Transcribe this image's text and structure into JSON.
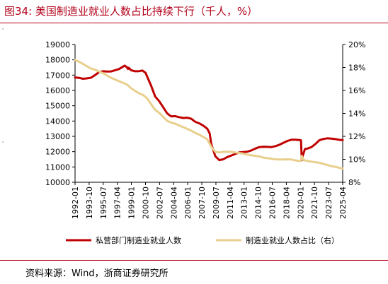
{
  "figure": {
    "title": "图34:   美国制造业就业人数占比持续下行（千人，%）",
    "source": "资料来源：Wind，浙商证券研究所"
  },
  "colors": {
    "title": "#b3001b",
    "series_employment": "#c00000",
    "series_share": "#e8cf8d",
    "axis": "#000000"
  },
  "chart_data": {
    "type": "line",
    "x_tick_labels": [
      "1992-01",
      "1993-10",
      "1995-07",
      "1997-04",
      "1999-01",
      "2000-10",
      "2002-07",
      "2004-04",
      "2006-01",
      "2007-10",
      "2009-07",
      "2011-04",
      "2013-01",
      "2014-10",
      "2016-07",
      "2018-04",
      "2020-01",
      "2021-10",
      "2023-07",
      "2025-04"
    ],
    "x_range": [
      1992.0,
      2025.4
    ],
    "y_left": {
      "ticks": [
        10000,
        11000,
        12000,
        13000,
        14000,
        15000,
        16000,
        17000,
        18000,
        19000
      ],
      "range": [
        10000,
        19000
      ]
    },
    "y_right": {
      "ticks": [
        "8%",
        "10%",
        "12%",
        "14%",
        "16%",
        "18%",
        "20%"
      ],
      "range": [
        8,
        20
      ]
    },
    "grid": false,
    "legend_position": "bottom",
    "series": [
      {
        "name": "私营部门制造业就业人数",
        "axis": "left",
        "points": [
          [
            1992.0,
            16850
          ],
          [
            1992.5,
            16820
          ],
          [
            1993.0,
            16760
          ],
          [
            1993.5,
            16790
          ],
          [
            1994.0,
            16830
          ],
          [
            1994.5,
            17000
          ],
          [
            1995.0,
            17200
          ],
          [
            1995.5,
            17250
          ],
          [
            1996.0,
            17230
          ],
          [
            1996.5,
            17240
          ],
          [
            1997.0,
            17320
          ],
          [
            1997.5,
            17400
          ],
          [
            1998.0,
            17560
          ],
          [
            1998.2,
            17620
          ],
          [
            1998.5,
            17500
          ],
          [
            1998.6,
            17400
          ],
          [
            1998.7,
            17480
          ],
          [
            1999.0,
            17320
          ],
          [
            1999.5,
            17250
          ],
          [
            2000.0,
            17260
          ],
          [
            2000.4,
            17300
          ],
          [
            2000.8,
            17150
          ],
          [
            2001.0,
            16900
          ],
          [
            2001.5,
            16300
          ],
          [
            2002.0,
            15600
          ],
          [
            2002.5,
            15300
          ],
          [
            2003.0,
            14900
          ],
          [
            2003.5,
            14500
          ],
          [
            2004.0,
            14300
          ],
          [
            2004.5,
            14320
          ],
          [
            2005.0,
            14250
          ],
          [
            2005.5,
            14200
          ],
          [
            2006.0,
            14220
          ],
          [
            2006.5,
            14150
          ],
          [
            2007.0,
            13950
          ],
          [
            2007.5,
            13850
          ],
          [
            2008.0,
            13700
          ],
          [
            2008.5,
            13500
          ],
          [
            2008.8,
            13200
          ],
          [
            2009.0,
            12500
          ],
          [
            2009.5,
            11700
          ],
          [
            2010.0,
            11450
          ],
          [
            2010.5,
            11500
          ],
          [
            2011.0,
            11650
          ],
          [
            2011.5,
            11750
          ],
          [
            2012.0,
            11850
          ],
          [
            2012.5,
            11950
          ],
          [
            2013.0,
            11970
          ],
          [
            2013.5,
            12000
          ],
          [
            2014.0,
            12080
          ],
          [
            2014.5,
            12200
          ],
          [
            2015.0,
            12300
          ],
          [
            2015.5,
            12320
          ],
          [
            2016.0,
            12310
          ],
          [
            2016.5,
            12300
          ],
          [
            2017.0,
            12360
          ],
          [
            2017.5,
            12450
          ],
          [
            2018.0,
            12580
          ],
          [
            2018.5,
            12700
          ],
          [
            2019.0,
            12780
          ],
          [
            2019.5,
            12780
          ],
          [
            2020.0,
            12760
          ],
          [
            2020.2,
            12740
          ],
          [
            2020.3,
            11430
          ],
          [
            2020.4,
            11700
          ],
          [
            2020.7,
            12180
          ],
          [
            2021.0,
            12200
          ],
          [
            2021.5,
            12300
          ],
          [
            2022.0,
            12500
          ],
          [
            2022.5,
            12750
          ],
          [
            2023.0,
            12830
          ],
          [
            2023.5,
            12870
          ],
          [
            2024.0,
            12850
          ],
          [
            2024.5,
            12820
          ],
          [
            2025.0,
            12770
          ],
          [
            2025.4,
            12760
          ]
        ]
      },
      {
        "name": "制造业就业人数占比（右）",
        "axis": "right",
        "points": [
          [
            1992.0,
            18.65
          ],
          [
            1992.5,
            18.5
          ],
          [
            1993.0,
            18.3
          ],
          [
            1993.5,
            18.1
          ],
          [
            1994.0,
            17.9
          ],
          [
            1994.5,
            17.8
          ],
          [
            1995.0,
            17.65
          ],
          [
            1995.5,
            17.5
          ],
          [
            1996.0,
            17.3
          ],
          [
            1996.5,
            17.1
          ],
          [
            1997.0,
            16.95
          ],
          [
            1997.5,
            16.8
          ],
          [
            1998.0,
            16.65
          ],
          [
            1998.5,
            16.5
          ],
          [
            1999.0,
            16.2
          ],
          [
            1999.5,
            15.95
          ],
          [
            2000.0,
            15.75
          ],
          [
            2000.5,
            15.6
          ],
          [
            2001.0,
            15.3
          ],
          [
            2001.5,
            14.8
          ],
          [
            2002.0,
            14.3
          ],
          [
            2002.5,
            14.05
          ],
          [
            2003.0,
            13.7
          ],
          [
            2003.5,
            13.35
          ],
          [
            2004.0,
            13.2
          ],
          [
            2004.5,
            13.1
          ],
          [
            2005.0,
            12.95
          ],
          [
            2005.5,
            12.8
          ],
          [
            2006.0,
            12.65
          ],
          [
            2006.5,
            12.5
          ],
          [
            2007.0,
            12.3
          ],
          [
            2007.5,
            12.15
          ],
          [
            2008.0,
            11.95
          ],
          [
            2008.5,
            11.75
          ],
          [
            2009.0,
            11.1
          ],
          [
            2009.5,
            10.65
          ],
          [
            2010.0,
            10.6
          ],
          [
            2010.5,
            10.65
          ],
          [
            2011.0,
            10.65
          ],
          [
            2011.5,
            10.65
          ],
          [
            2012.0,
            10.6
          ],
          [
            2012.5,
            10.55
          ],
          [
            2013.0,
            10.5
          ],
          [
            2013.5,
            10.4
          ],
          [
            2014.0,
            10.35
          ],
          [
            2014.5,
            10.3
          ],
          [
            2015.0,
            10.25
          ],
          [
            2015.5,
            10.15
          ],
          [
            2016.0,
            10.1
          ],
          [
            2016.5,
            10.05
          ],
          [
            2017.0,
            10.0
          ],
          [
            2017.5,
            9.98
          ],
          [
            2018.0,
            9.98
          ],
          [
            2018.5,
            10.0
          ],
          [
            2019.0,
            9.98
          ],
          [
            2019.5,
            9.9
          ],
          [
            2020.0,
            9.85
          ],
          [
            2020.2,
            9.9
          ],
          [
            2020.3,
            10.3
          ],
          [
            2020.5,
            9.95
          ],
          [
            2021.0,
            9.85
          ],
          [
            2021.5,
            9.8
          ],
          [
            2022.0,
            9.75
          ],
          [
            2022.5,
            9.7
          ],
          [
            2023.0,
            9.6
          ],
          [
            2023.5,
            9.5
          ],
          [
            2024.0,
            9.4
          ],
          [
            2024.5,
            9.35
          ],
          [
            2025.0,
            9.25
          ],
          [
            2025.4,
            9.2
          ]
        ]
      }
    ]
  }
}
